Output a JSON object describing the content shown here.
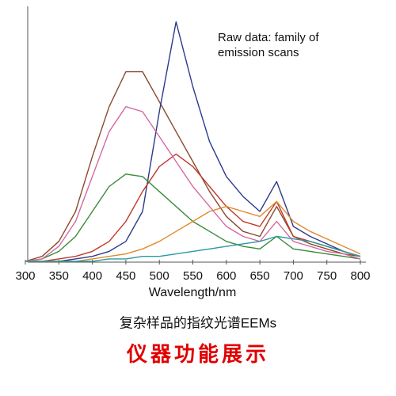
{
  "chart_data": {
    "type": "line",
    "annotation": [
      "Raw data: family of",
      "emission scans"
    ],
    "x_label": "Wavelength/nm",
    "caption": "复杂样品的指纹光谱EEMs",
    "banner": "仪器功能展示",
    "x": [
      300,
      325,
      350,
      375,
      400,
      425,
      450,
      475,
      500,
      525,
      550,
      575,
      600,
      625,
      650,
      675,
      700,
      725,
      750,
      775,
      800
    ],
    "xlim": [
      300,
      800
    ],
    "xticks": [
      300,
      350,
      400,
      450,
      500,
      550,
      600,
      650,
      700,
      750,
      800
    ],
    "ylim": [
      0,
      100
    ],
    "series": [
      {
        "color": "#8b4a2e",
        "values": [
          0,
          2,
          8,
          20,
          42,
          62,
          76,
          76,
          64,
          52,
          40,
          28,
          18,
          12,
          10,
          22,
          10,
          7,
          5,
          3,
          2
        ]
      },
      {
        "color": "#2b3a8c",
        "values": [
          0,
          0,
          0,
          1,
          2,
          4,
          8,
          20,
          60,
          96,
          70,
          48,
          34,
          26,
          20,
          32,
          14,
          10,
          7,
          4,
          2
        ]
      },
      {
        "color": "#c0392b",
        "values": [
          0,
          0,
          1,
          2,
          4,
          8,
          16,
          28,
          38,
          43,
          38,
          30,
          22,
          16,
          14,
          24,
          10,
          8,
          6,
          4,
          2
        ]
      },
      {
        "color": "#3a8a3a",
        "values": [
          0,
          1,
          4,
          10,
          20,
          30,
          35,
          34,
          28,
          22,
          16,
          12,
          8,
          6,
          5,
          10,
          5,
          4,
          3,
          2,
          1
        ]
      },
      {
        "color": "#e08a2a",
        "values": [
          0,
          0,
          0,
          0,
          1,
          2,
          3,
          5,
          8,
          12,
          16,
          20,
          22,
          20,
          18,
          24,
          16,
          12,
          9,
          6,
          3
        ]
      },
      {
        "color": "#d46aa0",
        "values": [
          0,
          1,
          6,
          16,
          34,
          52,
          62,
          60,
          50,
          40,
          30,
          22,
          14,
          10,
          8,
          16,
          8,
          6,
          4,
          3,
          1
        ]
      },
      {
        "color": "#2a9aa0",
        "values": [
          0,
          0,
          0,
          0,
          0,
          1,
          1,
          2,
          2,
          3,
          4,
          5,
          6,
          7,
          8,
          10,
          9,
          8,
          6,
          4,
          2
        ]
      }
    ]
  }
}
